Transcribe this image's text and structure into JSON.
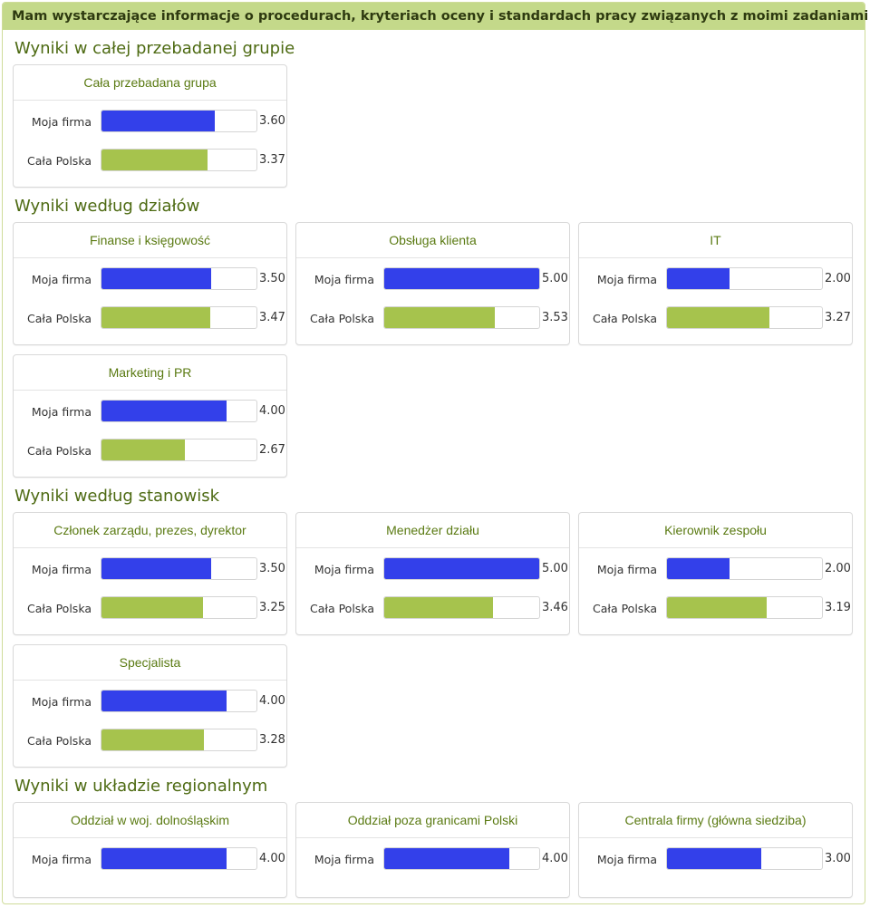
{
  "header_title": "Mam wystarczające informacje o procedurach, kryteriach oceny i standardach pracy związanych z moimi zadaniami",
  "scale_max": 5,
  "colors": {
    "firm": "#3340ea",
    "poland": "#a6c34d",
    "section": "#4d6a12",
    "header_bg": "#c4d98a"
  },
  "series_labels": {
    "firm": "Moja firma",
    "poland": "Cała Polska"
  },
  "sections": [
    {
      "title": "Wyniki w całej przebadanej grupie",
      "panels": [
        {
          "title": "Cała przebadana grupa",
          "firm": "3.60",
          "poland": "3.37"
        }
      ]
    },
    {
      "title": "Wyniki według działów",
      "panels": [
        {
          "title": "Finanse i księgowość",
          "firm": "3.50",
          "poland": "3.47"
        },
        {
          "title": "Obsługa klienta",
          "firm": "5.00",
          "poland": "3.53"
        },
        {
          "title": "IT",
          "firm": "2.00",
          "poland": "3.27"
        },
        {
          "title": "Marketing i PR",
          "firm": "4.00",
          "poland": "2.67"
        }
      ]
    },
    {
      "title": "Wyniki według stanowisk",
      "panels": [
        {
          "title": "Członek zarządu, prezes, dyrektor",
          "firm": "3.50",
          "poland": "3.25"
        },
        {
          "title": "Menedżer działu",
          "firm": "5.00",
          "poland": "3.46"
        },
        {
          "title": "Kierownik zespołu",
          "firm": "2.00",
          "poland": "3.19"
        },
        {
          "title": "Specjalista",
          "firm": "4.00",
          "poland": "3.28"
        }
      ]
    },
    {
      "title": "Wyniki w układzie regionalnym",
      "panels": [
        {
          "title": "Oddział w woj. dolnośląskim",
          "firm": "4.00"
        },
        {
          "title": "Oddział poza granicami Polski",
          "firm": "4.00"
        },
        {
          "title": "Centrala firmy (główna siedziba)",
          "firm": "3.00"
        }
      ]
    }
  ],
  "chart_data": {
    "type": "bar",
    "xlim": [
      0,
      5
    ],
    "series": [
      {
        "name": "Moja firma",
        "values": [
          3.6,
          3.5,
          5.0,
          2.0,
          4.0,
          3.5,
          5.0,
          2.0,
          4.0,
          4.0,
          4.0,
          3.0
        ]
      },
      {
        "name": "Cała Polska",
        "values": [
          3.37,
          3.47,
          3.53,
          3.27,
          2.67,
          3.25,
          3.46,
          3.19,
          3.28,
          null,
          null,
          null
        ]
      }
    ],
    "categories": [
      "Cała przebadana grupa",
      "Finanse i księgowość",
      "Obsługa klienta",
      "IT",
      "Marketing i PR",
      "Członek zarządu, prezes, dyrektor",
      "Menedżer działu",
      "Kierownik zespołu",
      "Specjalista",
      "Oddział w woj. dolnośląskim",
      "Oddział poza granicami Polski",
      "Centrala firmy (główna siedziba)"
    ]
  }
}
